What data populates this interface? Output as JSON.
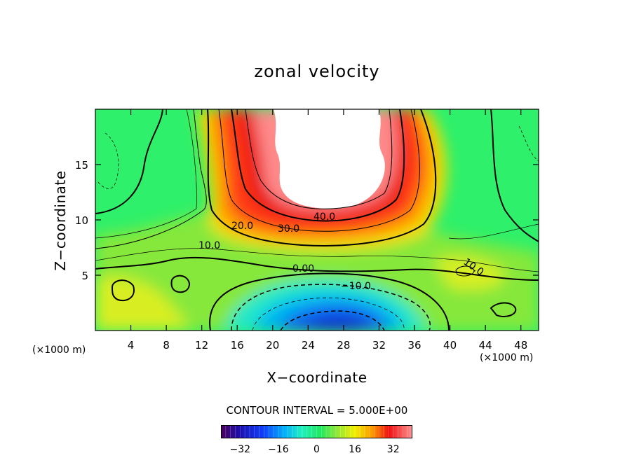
{
  "chart_data": {
    "type": "heatmap",
    "title": "zonal velocity",
    "xlabel": "X−coordinate",
    "ylabel": "Z−coordinate",
    "x_unit": "(×1000 m)",
    "xlim": [
      0,
      50
    ],
    "ylim": [
      0,
      20
    ],
    "x_ticks": [
      "4",
      "8",
      "12",
      "16",
      "20",
      "24",
      "28",
      "32",
      "36",
      "40",
      "44",
      "48"
    ],
    "y_ticks": [
      "5",
      "10",
      "15"
    ],
    "contour_interval": "CONTOUR INTERVAL = 5.000E+00",
    "contour_labels": [
      "40.0",
      "30.0",
      "20.0",
      "10.0",
      "0.00",
      "−10.0",
      "10.0"
    ],
    "colorbar": {
      "ticks": [
        "−32",
        "−16",
        "0",
        "16",
        "32"
      ],
      "range": [
        -40,
        40
      ]
    },
    "features": {
      "max_jet": {
        "x": 27,
        "z": 16,
        "value": 45,
        "note": "values above 40 left white"
      },
      "min_core": {
        "x": 27,
        "z": 0.5,
        "value": -28
      }
    }
  }
}
